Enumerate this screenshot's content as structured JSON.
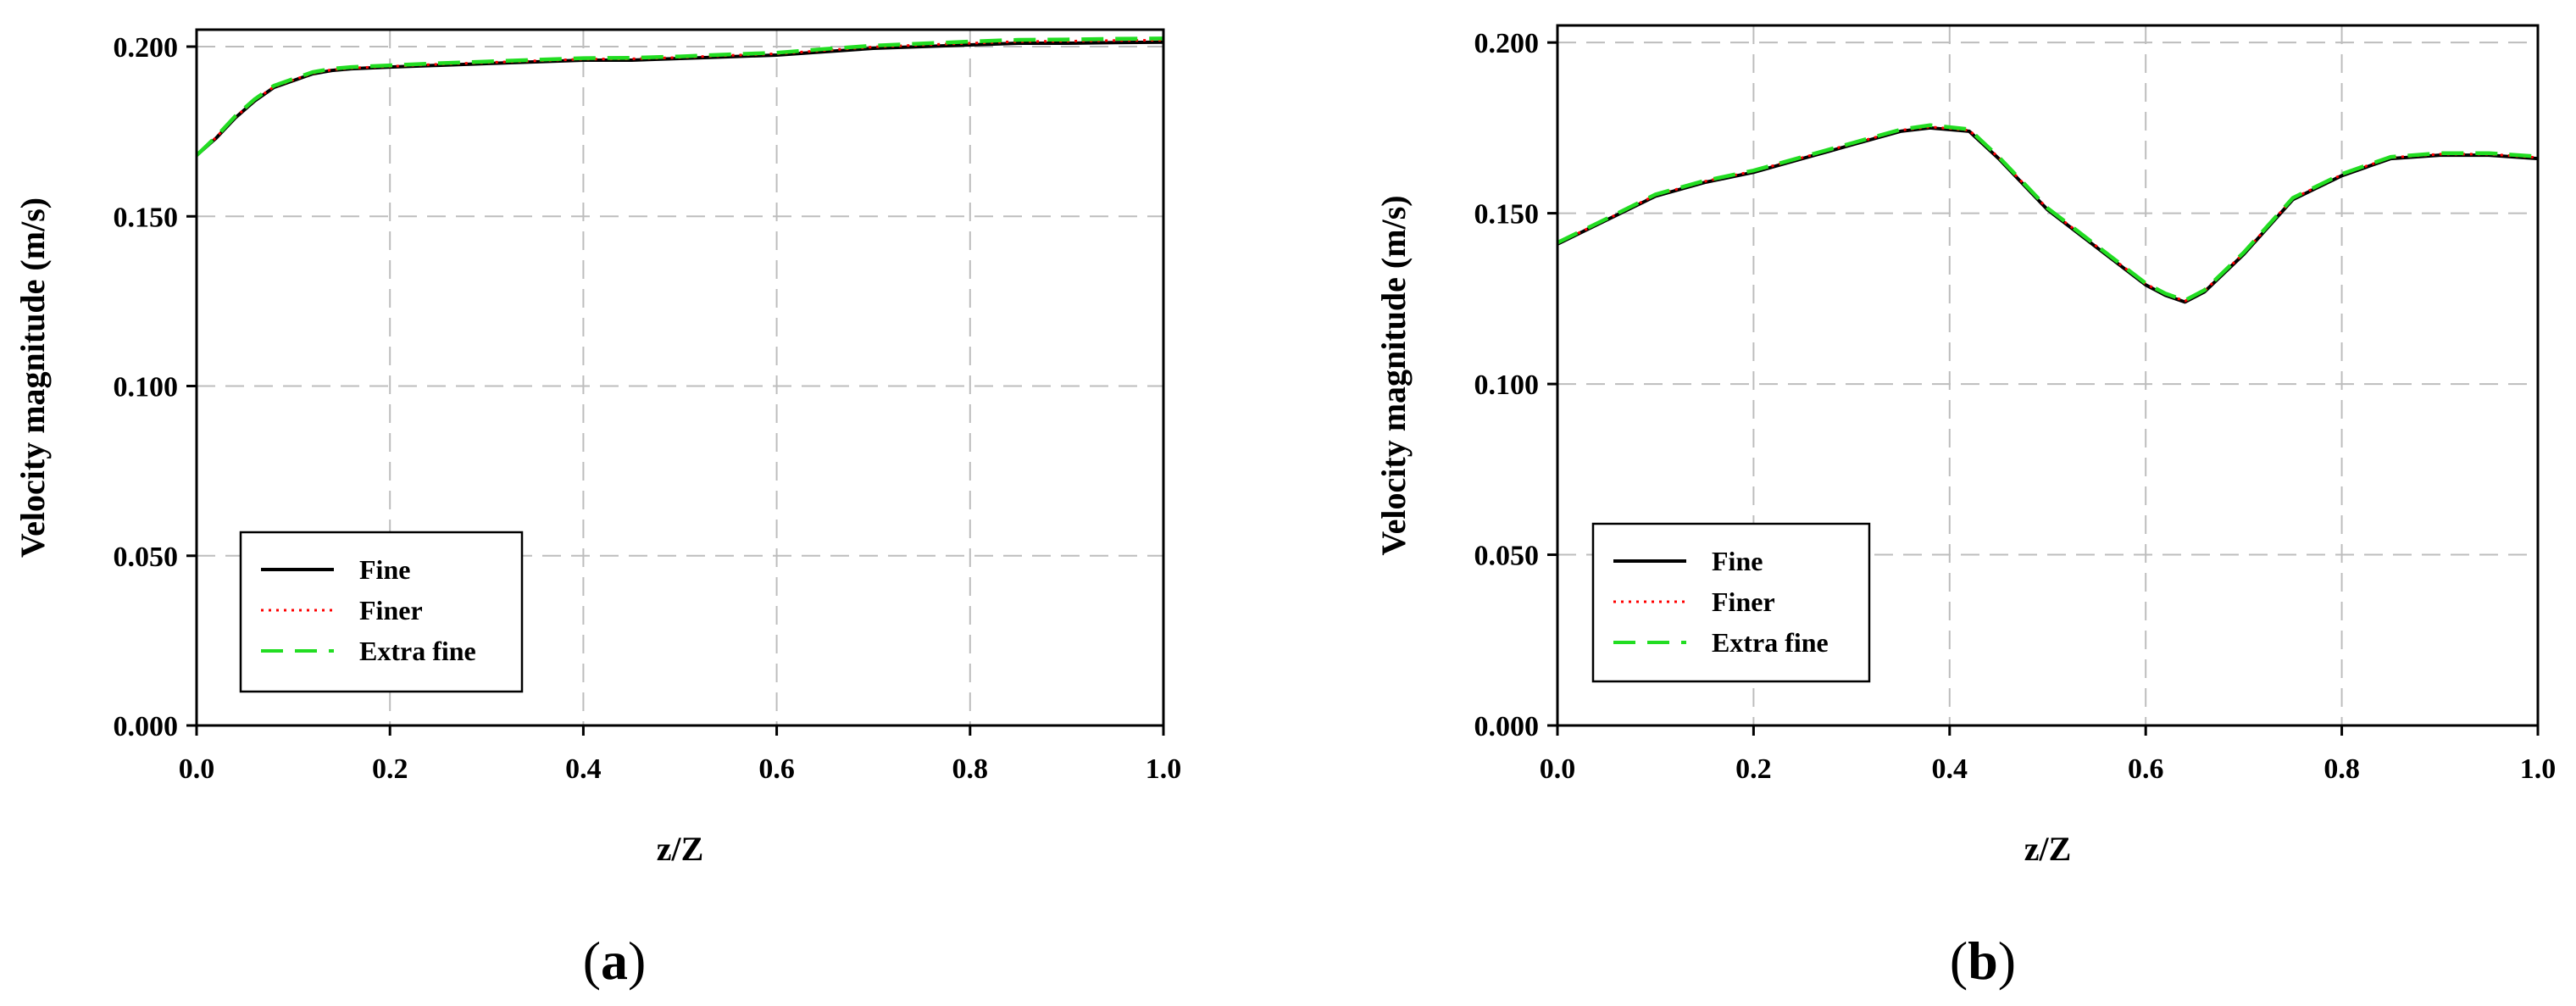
{
  "chart_data": [
    {
      "id": "a",
      "type": "line",
      "caption_letter": "a",
      "xlabel": "z/Z",
      "ylabel": "Velocity magnitude (m/s)",
      "xlim": [
        0.0,
        1.0
      ],
      "ylim": [
        0.0,
        0.205
      ],
      "xticks": [
        0.0,
        0.2,
        0.4,
        0.6,
        0.8,
        1.0
      ],
      "xtick_labels": [
        "0.0",
        "0.2",
        "0.4",
        "0.6",
        "0.8",
        "1.0"
      ],
      "yticks": [
        0.0,
        0.05,
        0.1,
        0.15,
        0.2
      ],
      "ytick_labels": [
        "0.000",
        "0.050",
        "0.100",
        "0.150",
        "0.200"
      ],
      "grid": true,
      "legend_position": "bottom-left",
      "x": [
        0.0,
        0.02,
        0.04,
        0.06,
        0.08,
        0.1,
        0.12,
        0.14,
        0.16,
        0.2,
        0.25,
        0.3,
        0.35,
        0.4,
        0.45,
        0.5,
        0.55,
        0.6,
        0.65,
        0.7,
        0.75,
        0.8,
        0.85,
        0.9,
        0.95,
        1.0
      ],
      "series": [
        {
          "name": "Fine",
          "color": "#000000",
          "style": "solid",
          "values": [
            0.168,
            0.173,
            0.179,
            0.184,
            0.188,
            0.19,
            0.192,
            0.193,
            0.1935,
            0.194,
            0.1945,
            0.195,
            0.1955,
            0.196,
            0.196,
            0.1965,
            0.197,
            0.1975,
            0.1985,
            0.1995,
            0.2,
            0.2005,
            0.201,
            0.201,
            0.2012,
            0.2013
          ]
        },
        {
          "name": "Finer",
          "color": "#ff0000",
          "style": "dotted",
          "values": [
            0.168,
            0.1732,
            0.1792,
            0.1842,
            0.1882,
            0.1902,
            0.1922,
            0.1932,
            0.1937,
            0.1942,
            0.1948,
            0.1953,
            0.1958,
            0.1963,
            0.1964,
            0.1968,
            0.1974,
            0.1979,
            0.1989,
            0.1999,
            0.2005,
            0.201,
            0.2015,
            0.2016,
            0.2018,
            0.2019
          ]
        },
        {
          "name": "Extra fine",
          "color": "#22dd22",
          "style": "dashed",
          "values": [
            0.168,
            0.1734,
            0.1795,
            0.1845,
            0.1885,
            0.1905,
            0.1925,
            0.1935,
            0.194,
            0.1945,
            0.1951,
            0.1956,
            0.1961,
            0.1966,
            0.1967,
            0.1971,
            0.1977,
            0.1982,
            0.1993,
            0.2003,
            0.2009,
            0.2015,
            0.202,
            0.2021,
            0.2023,
            0.2024
          ]
        }
      ]
    },
    {
      "id": "b",
      "type": "line",
      "caption_letter": "b",
      "xlabel": "z/Z",
      "ylabel": "Velocity magnitude (m/s)",
      "xlim": [
        0.0,
        1.0
      ],
      "ylim": [
        0.0,
        0.205
      ],
      "xticks": [
        0.0,
        0.2,
        0.4,
        0.6,
        0.8,
        1.0
      ],
      "xtick_labels": [
        "0.0",
        "0.2",
        "0.4",
        "0.6",
        "0.8",
        "1.0"
      ],
      "yticks": [
        0.0,
        0.05,
        0.1,
        0.15,
        0.2
      ],
      "ytick_labels": [
        "0.000",
        "0.050",
        "0.100",
        "0.150",
        "0.200"
      ],
      "grid": true,
      "legend_position": "bottom-left",
      "x": [
        0.0,
        0.05,
        0.1,
        0.15,
        0.2,
        0.25,
        0.3,
        0.35,
        0.38,
        0.42,
        0.45,
        0.5,
        0.55,
        0.6,
        0.62,
        0.64,
        0.66,
        0.7,
        0.75,
        0.8,
        0.85,
        0.9,
        0.95,
        1.0
      ],
      "series": [
        {
          "name": "Fine",
          "color": "#000000",
          "style": "solid",
          "values": [
            0.141,
            0.148,
            0.155,
            0.159,
            0.162,
            0.166,
            0.17,
            0.174,
            0.175,
            0.174,
            0.166,
            0.151,
            0.14,
            0.129,
            0.126,
            0.124,
            0.127,
            0.138,
            0.154,
            0.161,
            0.166,
            0.167,
            0.167,
            0.166
          ]
        },
        {
          "name": "Finer",
          "color": "#ff0000",
          "style": "dotted",
          "values": [
            0.1412,
            0.1482,
            0.1553,
            0.1593,
            0.1623,
            0.1663,
            0.1703,
            0.1743,
            0.1753,
            0.1743,
            0.1663,
            0.1513,
            0.1403,
            0.1293,
            0.1263,
            0.1243,
            0.1273,
            0.1383,
            0.1543,
            0.1613,
            0.1663,
            0.1673,
            0.1673,
            0.1663
          ]
        },
        {
          "name": "Extra fine",
          "color": "#22dd22",
          "style": "dashed",
          "values": [
            0.1414,
            0.1484,
            0.1555,
            0.1595,
            0.1625,
            0.1665,
            0.1705,
            0.1745,
            0.1758,
            0.1746,
            0.1665,
            0.1515,
            0.1405,
            0.1295,
            0.1265,
            0.1245,
            0.1275,
            0.1385,
            0.1545,
            0.1615,
            0.1665,
            0.1676,
            0.1676,
            0.1666
          ]
        }
      ]
    }
  ]
}
